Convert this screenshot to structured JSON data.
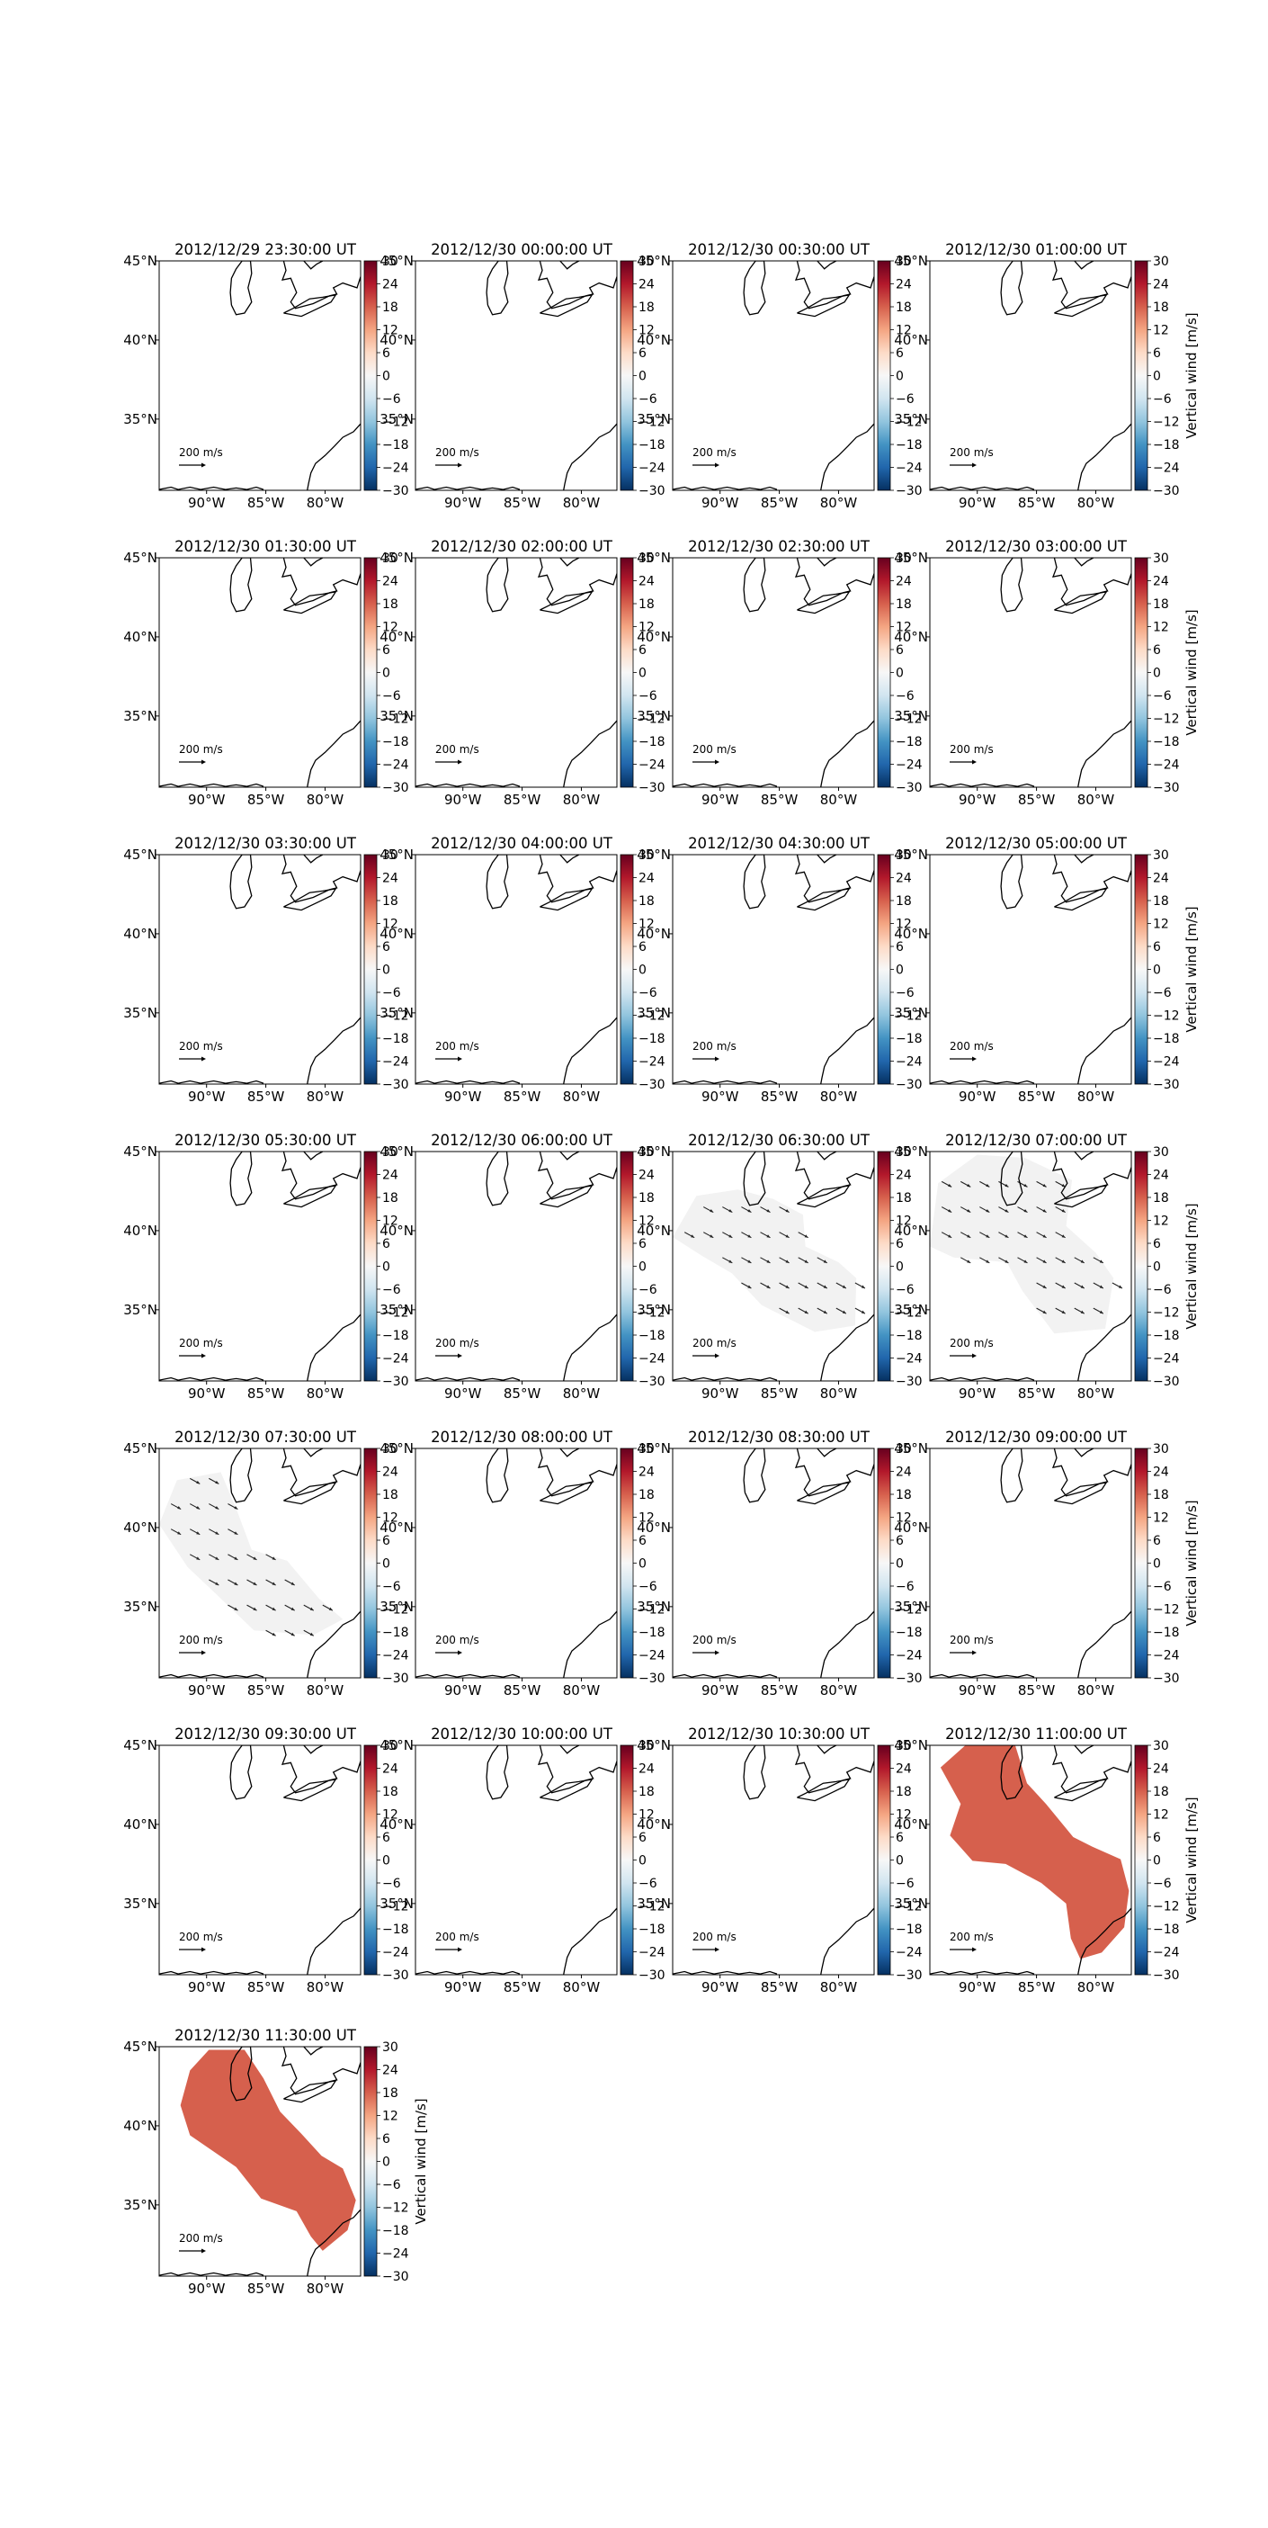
{
  "figure": {
    "colorbar_label": "Vertical wind [m/s]",
    "colorbar_ticks": [
      "30",
      "24",
      "18",
      "12",
      "6",
      "0",
      "−6",
      "−12",
      "−18",
      "−24",
      "−30"
    ],
    "colormap": [
      "#67001f",
      "#b2182b",
      "#d6604d",
      "#f4a582",
      "#fddbc7",
      "#f7f7f7",
      "#d1e5f0",
      "#92c5de",
      "#4393c3",
      "#2166ac",
      "#053061"
    ],
    "x_tick_labels": [
      "90°W",
      "85°W",
      "80°W"
    ],
    "y_tick_labels": [
      "45°N",
      "40°N",
      "35°N"
    ],
    "quiver_key_label": "200 m/s",
    "fill_colors": {
      "neutral": "#f2f2f2",
      "positive": "#d6604d"
    }
  },
  "chart_data": [
    {
      "type": "heatmap",
      "title": "2012/12/29 23:30:00 UT",
      "field": "none",
      "value": null,
      "show_colorbar_label": false
    },
    {
      "type": "heatmap",
      "title": "2012/12/30 00:00:00 UT",
      "field": "none",
      "value": null,
      "show_colorbar_label": false
    },
    {
      "type": "heatmap",
      "title": "2012/12/30 00:30:00 UT",
      "field": "none",
      "value": null,
      "show_colorbar_label": false
    },
    {
      "type": "heatmap",
      "title": "2012/12/30 01:00:00 UT",
      "field": "none",
      "value": null,
      "show_colorbar_label": true
    },
    {
      "type": "heatmap",
      "title": "2012/12/30 01:30:00 UT",
      "field": "none",
      "value": null,
      "show_colorbar_label": false
    },
    {
      "type": "heatmap",
      "title": "2012/12/30 02:00:00 UT",
      "field": "none",
      "value": null,
      "show_colorbar_label": false
    },
    {
      "type": "heatmap",
      "title": "2012/12/30 02:30:00 UT",
      "field": "none",
      "value": null,
      "show_colorbar_label": false
    },
    {
      "type": "heatmap",
      "title": "2012/12/30 03:00:00 UT",
      "field": "none",
      "value": null,
      "show_colorbar_label": true
    },
    {
      "type": "heatmap",
      "title": "2012/12/30 03:30:00 UT",
      "field": "none",
      "value": null,
      "show_colorbar_label": false
    },
    {
      "type": "heatmap",
      "title": "2012/12/30 04:00:00 UT",
      "field": "none",
      "value": null,
      "show_colorbar_label": false
    },
    {
      "type": "heatmap",
      "title": "2012/12/30 04:30:00 UT",
      "field": "none",
      "value": null,
      "show_colorbar_label": false
    },
    {
      "type": "heatmap",
      "title": "2012/12/30 05:00:00 UT",
      "field": "none",
      "value": null,
      "show_colorbar_label": true
    },
    {
      "type": "heatmap",
      "title": "2012/12/30 05:30:00 UT",
      "field": "none",
      "value": null,
      "show_colorbar_label": false
    },
    {
      "type": "heatmap",
      "title": "2012/12/30 06:00:00 UT",
      "field": "none",
      "value": null,
      "show_colorbar_label": false
    },
    {
      "type": "heatmap",
      "title": "2012/12/30 06:30:00 UT",
      "field": "neutral",
      "value": 0,
      "show_colorbar_label": false
    },
    {
      "type": "heatmap",
      "title": "2012/12/30 07:00:00 UT",
      "field": "neutral",
      "value": 0,
      "show_colorbar_label": true
    },
    {
      "type": "heatmap",
      "title": "2012/12/30 07:30:00 UT",
      "field": "neutral",
      "value": 0,
      "show_colorbar_label": false
    },
    {
      "type": "heatmap",
      "title": "2012/12/30 08:00:00 UT",
      "field": "none",
      "value": null,
      "show_colorbar_label": false
    },
    {
      "type": "heatmap",
      "title": "2012/12/30 08:30:00 UT",
      "field": "none",
      "value": null,
      "show_colorbar_label": false
    },
    {
      "type": "heatmap",
      "title": "2012/12/30 09:00:00 UT",
      "field": "none",
      "value": null,
      "show_colorbar_label": true
    },
    {
      "type": "heatmap",
      "title": "2012/12/30 09:30:00 UT",
      "field": "none",
      "value": null,
      "show_colorbar_label": false
    },
    {
      "type": "heatmap",
      "title": "2012/12/30 10:00:00 UT",
      "field": "none",
      "value": null,
      "show_colorbar_label": false
    },
    {
      "type": "heatmap",
      "title": "2012/12/30 10:30:00 UT",
      "field": "none",
      "value": null,
      "show_colorbar_label": false
    },
    {
      "type": "heatmap",
      "title": "2012/12/30 11:00:00 UT",
      "field": "positive",
      "value": 12,
      "show_colorbar_label": true
    },
    {
      "type": "heatmap",
      "title": "2012/12/30 11:30:00 UT",
      "field": "positive",
      "value": 12,
      "show_colorbar_label": true
    }
  ]
}
